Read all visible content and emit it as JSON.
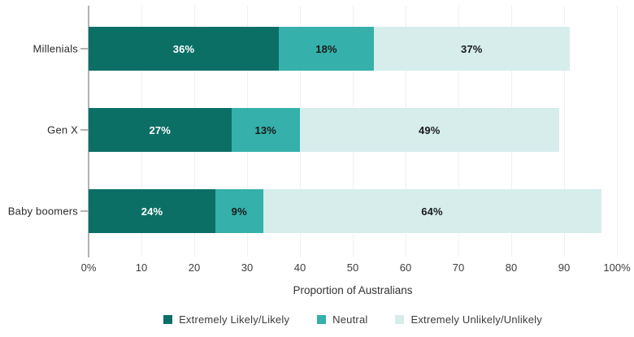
{
  "chart_data": {
    "type": "bar",
    "orientation": "horizontal",
    "stacked": true,
    "title": "",
    "xlabel": "Proportion of Australians",
    "ylabel": "",
    "xlim": [
      0,
      100
    ],
    "grid": "vertical-light",
    "legend_position": "bottom",
    "categories": [
      "Millenials",
      "Gen X",
      "Baby boomers"
    ],
    "series": [
      {
        "name": "Extremely Likely/Likely",
        "color": "#0b6f66",
        "label_color": "#ffffff",
        "values": [
          36,
          27,
          24
        ]
      },
      {
        "name": "Neutral",
        "color": "#35b0aa",
        "label_color": "#1a1a1a",
        "values": [
          18,
          13,
          9
        ]
      },
      {
        "name": "Extremely Unlikely/Unlikely",
        "color": "#d6edec",
        "label_color": "#1a1a1a",
        "values": [
          37,
          49,
          64
        ]
      }
    ],
    "value_label_suffix": "%",
    "x_ticks": [
      {
        "value": 0,
        "label": "0%"
      },
      {
        "value": 10,
        "label": "10"
      },
      {
        "value": 20,
        "label": "20"
      },
      {
        "value": 30,
        "label": "30"
      },
      {
        "value": 40,
        "label": "40"
      },
      {
        "value": 50,
        "label": "50"
      },
      {
        "value": 60,
        "label": "60"
      },
      {
        "value": 70,
        "label": "70"
      },
      {
        "value": 80,
        "label": "80"
      },
      {
        "value": 90,
        "label": "90"
      },
      {
        "value": 100,
        "label": "100%"
      }
    ],
    "axis_line_color": "#b3b3b3",
    "gridline_color": "#f0f0f0",
    "tick_label_color": "#3d3d3d",
    "category_label_color": "#2b2b2b",
    "legend_text_color": "#3c3c3c"
  }
}
